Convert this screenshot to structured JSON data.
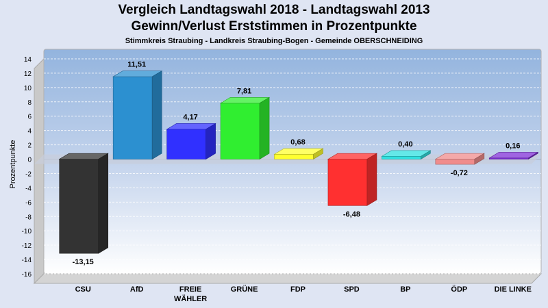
{
  "chart_data": {
    "type": "bar",
    "title": "Vergleich Landtagswahl 2018 - Landtagswahl 2013",
    "subtitle_line": "Gewinn/Verlust Erststimmen in Prozentpunkte",
    "subtitle": "Stimmkreis Straubing - Landkreis Straubing-Bogen - Gemeinde OBERSCHNEIDING",
    "ylabel": "Prozentpunkte",
    "xlabel": "",
    "ylim": [
      -16,
      14
    ],
    "yticks": [
      "14",
      "12",
      "10",
      "8",
      "6",
      "4",
      "2",
      "0",
      "-2",
      "-4",
      "-6",
      "-8",
      "-10",
      "-12",
      "-14",
      "-16"
    ],
    "grid": true,
    "categories": [
      "CSU",
      "AfD",
      "FREIE WÄHLER",
      "GRÜNE",
      "FDP",
      "SPD",
      "BP",
      "ÖDP",
      "DIE LINKE"
    ],
    "category_lines": [
      [
        "CSU"
      ],
      [
        "AfD"
      ],
      [
        "FREIE",
        "WÄHLER"
      ],
      [
        "GRÜNE"
      ],
      [
        "FDP"
      ],
      [
        "SPD"
      ],
      [
        "BP"
      ],
      [
        "ÖDP"
      ],
      [
        "DIE LINKE"
      ]
    ],
    "values": [
      -13.15,
      11.51,
      4.17,
      7.81,
      0.68,
      -6.48,
      0.4,
      -0.72,
      0.16
    ],
    "value_labels": [
      "-13,15",
      "11,51",
      "4,17",
      "7,81",
      "0,68",
      "-6,48",
      "0,40",
      "-0,72",
      "0,16"
    ],
    "colors": [
      "#333333",
      "#2c90d0",
      "#3030ff",
      "#30ee30",
      "#ffff30",
      "#ff3030",
      "#30e0e0",
      "#f08c8c",
      "#8030d8"
    ]
  }
}
